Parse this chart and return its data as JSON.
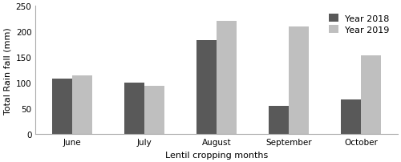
{
  "categories": [
    "June",
    "July",
    "August",
    "September",
    "October"
  ],
  "values_2018": [
    108,
    100,
    183,
    55,
    68
  ],
  "values_2019": [
    115,
    95,
    220,
    210,
    153
  ],
  "bar_color_2018": "#595959",
  "bar_color_2019": "#bfbfbf",
  "xlabel": "Lentil cropping months",
  "ylabel": "Total Rain fall (mm)",
  "ylim": [
    0,
    250
  ],
  "yticks": [
    0,
    50,
    100,
    150,
    200,
    250
  ],
  "legend_labels": [
    "Year 2018",
    "Year 2019"
  ],
  "bar_width": 0.28,
  "background_color": "#ffffff",
  "label_fontsize": 8,
  "tick_fontsize": 7.5,
  "legend_fontsize": 8
}
